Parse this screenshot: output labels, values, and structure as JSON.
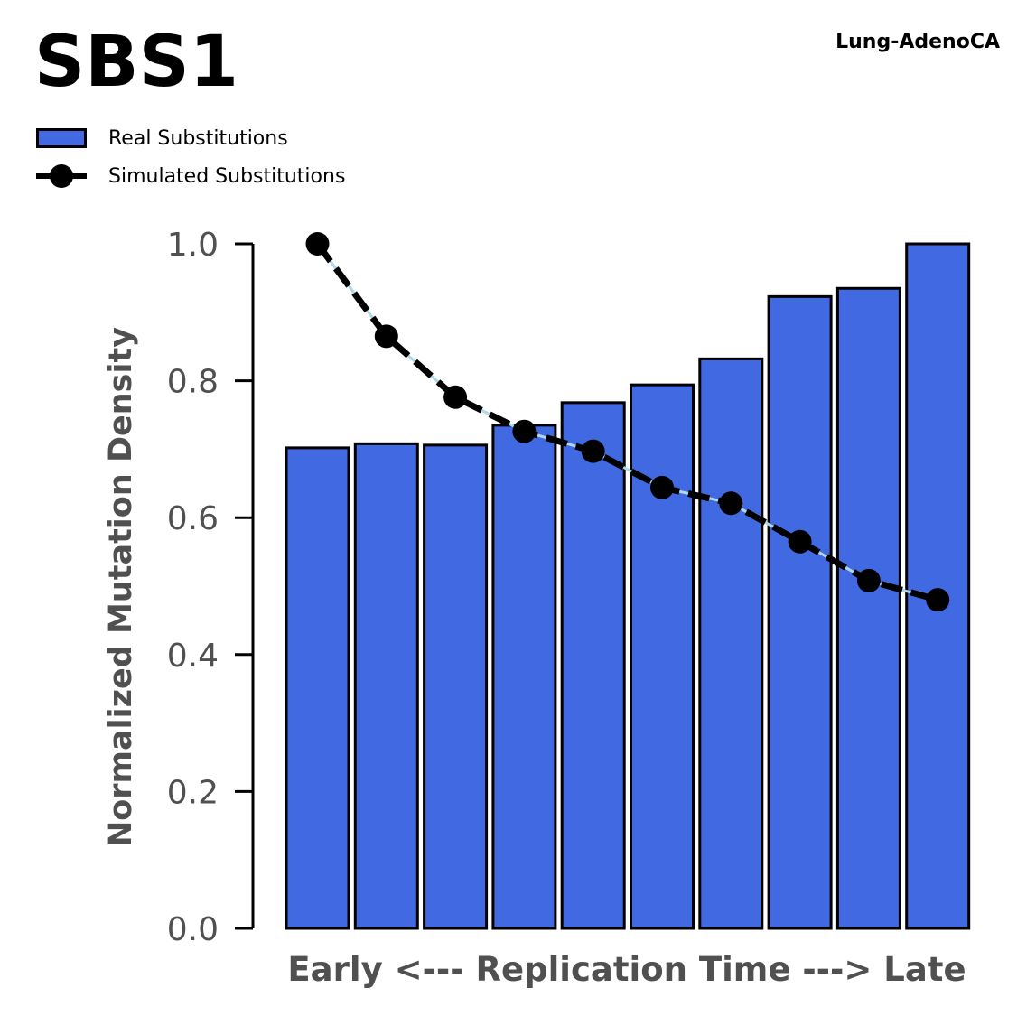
{
  "title": "SBS1",
  "subtitle": "Lung-AdenoCA",
  "colors": {
    "bar": "#4169e1",
    "edge": "#000000",
    "line": "#000000",
    "line_gap": "#add8e6",
    "axis_text": "#505050"
  },
  "chart_data": {
    "type": "bar",
    "xlabel": "Early <--- Replication Time ---> Late",
    "ylabel": "Normalized Mutation Density",
    "ylim": [
      0,
      1.0
    ],
    "yticks": [
      "0.0",
      "0.2",
      "0.4",
      "0.6",
      "0.8",
      "1.0"
    ],
    "grid": false,
    "legend_placement": "top-left",
    "series": [
      {
        "name": "Real Substitutions",
        "type": "bar",
        "values": [
          0.702,
          0.708,
          0.706,
          0.735,
          0.768,
          0.794,
          0.832,
          0.923,
          0.935,
          1.0
        ]
      },
      {
        "name": "Simulated Substitutions",
        "type": "line",
        "values": [
          1.0,
          0.865,
          0.776,
          0.726,
          0.697,
          0.644,
          0.621,
          0.565,
          0.508,
          0.48
        ]
      }
    ]
  }
}
